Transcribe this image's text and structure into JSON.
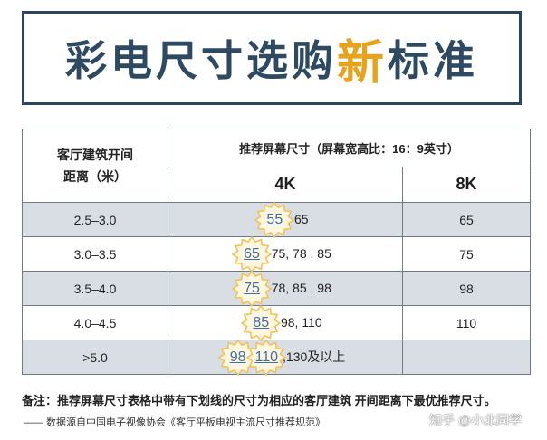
{
  "title": {
    "prefix": "彩电尺寸选购",
    "accent": "新",
    "suffix": "标准"
  },
  "table": {
    "left_header": [
      "客厅建筑开间",
      "距离（米）"
    ],
    "top_header": "推荐屏幕尺寸（屏幕宽高比：16：9英寸）",
    "col_4k": "4K",
    "col_8k": "8K",
    "rows": [
      {
        "distance": "2.5–3.0",
        "best": [
          "55"
        ],
        "rest": ", 65",
        "k8": "65"
      },
      {
        "distance": "3.0–3.5",
        "best": [
          "65"
        ],
        "rest": ", 75, 78 , 85",
        "k8": "75"
      },
      {
        "distance": "3.5–4.0",
        "best": [
          "75"
        ],
        "rest": ", 78, 85 , 98",
        "k8": "98"
      },
      {
        "distance": "4.0–4.5",
        "best": [
          "85"
        ],
        "rest": ", 98, 110",
        "k8": "110"
      },
      {
        "distance": ">5.0",
        "best": [
          "98",
          "110"
        ],
        "rest": ",130及以上",
        "k8": ""
      }
    ]
  },
  "note": "备注：推荐屏幕尺寸表格中带有下划线的尺寸为相应的客厅建筑 开间距离下最优推荐尺寸。",
  "source": "—— 数据源自中国电子视像协会《客厅平板电视主流尺寸推荐规范》",
  "watermark": "知乎 @小北同学",
  "colors": {
    "title_text": "#2e4a63",
    "accent": "#e8a31c",
    "row_shade": "#d9dde4",
    "underline_value": "#3f6fa8",
    "badge_outline": "#f2c25a"
  }
}
